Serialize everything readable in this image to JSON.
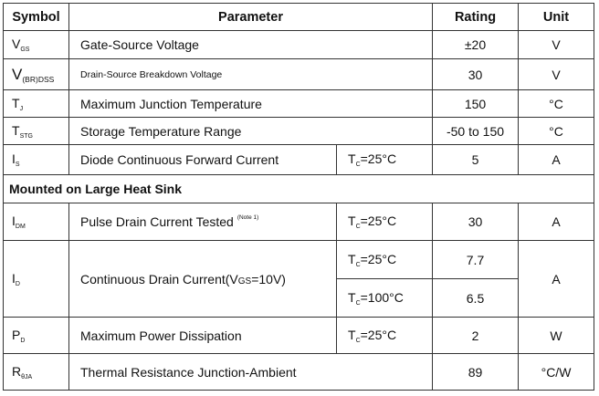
{
  "headers": {
    "symbol": "Symbol",
    "parameter": "Parameter",
    "rating": "Rating",
    "unit": "Unit"
  },
  "rows": [
    {
      "sym": "V",
      "sub": "GS",
      "param": "Gate-Source Voltage",
      "rating": "±20",
      "unit": "V"
    },
    {
      "sym": "V",
      "sub": "(BR)DSS",
      "param": "Drain-Source Breakdown Voltage",
      "rating": "30",
      "unit": "V"
    },
    {
      "sym": "T",
      "sub": "J",
      "param": "Maximum Junction Temperature",
      "rating": "150",
      "unit": "°C"
    },
    {
      "sym": "T",
      "sub": "STG",
      "param": "Storage Temperature Range",
      "rating": "-50 to 150",
      "unit": "°C"
    },
    {
      "sym": "I",
      "sub": "S",
      "param": "Diode Continuous Forward Current",
      "cond_t": "T",
      "cond_sub": "C",
      "cond": "=25°C",
      "rating": "5",
      "unit": "A"
    }
  ],
  "section": "Mounted on Large Heat Sink",
  "rows2": [
    {
      "sym": "I",
      "sub": "DM",
      "param": "Pulse Drain Current Tested",
      "note": "(Note 1)",
      "cond_t": "T",
      "cond_sub": "C",
      "cond": "=25°C",
      "rating": "30",
      "unit": "A"
    },
    {
      "sym": "I",
      "sub": "D",
      "param": "Continuous Drain Current(V",
      "param_sub": "GS",
      "param_end": "=10V)",
      "cond_t": "T",
      "cond_sub": "C",
      "cond": "=25°C",
      "rating": "7.7",
      "cond2": "=100°C",
      "rating2": "6.5",
      "unit": "A"
    },
    {
      "sym": "P",
      "sub": "D",
      "param": "Maximum Power Dissipation",
      "cond_t": "T",
      "cond_sub": "C",
      "cond": "=25°C",
      "rating": "2",
      "unit": "W"
    },
    {
      "sym": "R",
      "sub": "θJA",
      "param": "Thermal Resistance Junction-Ambient",
      "rating": "89",
      "unit": "°C/W"
    }
  ]
}
